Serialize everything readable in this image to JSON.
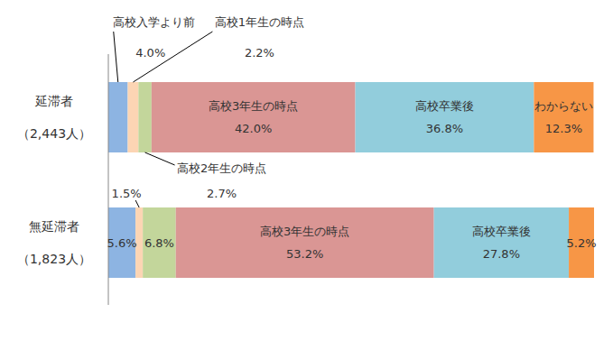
{
  "chart_data": {
    "type": "bar",
    "orientation": "horizontal",
    "stacked": true,
    "data_labels": true,
    "tick_labels": "y",
    "categories": [
      "延滞者\n（2,443人）",
      "無延滞者\n（1,823人）"
    ],
    "series": [
      {
        "name": "高校入学より前",
        "color": "#8db4e2",
        "values": [
          4.0,
          5.6
        ],
        "value_labels": [
          "4.0%",
          "5.6%"
        ]
      },
      {
        "name": "高校1年生の時点",
        "color": "#fcd5b4",
        "values": [
          2.2,
          1.5
        ],
        "value_labels": [
          "2.2%",
          "1.5%"
        ]
      },
      {
        "name": "高校2年生の時点",
        "color": "#c3d69b",
        "values": [
          2.7,
          6.8
        ],
        "value_labels": [
          "2.7%",
          "6.8%"
        ]
      },
      {
        "name": "高校3年生の時点",
        "color": "#da9694",
        "values": [
          42.0,
          53.2
        ],
        "value_labels": [
          "42.0%",
          "53.2%"
        ]
      },
      {
        "name": "高校卒業後",
        "color": "#92cddc",
        "values": [
          36.8,
          27.8
        ],
        "value_labels": [
          "36.8%",
          "27.8%"
        ]
      },
      {
        "name": "わからない",
        "color": "#f79646",
        "values": [
          12.3,
          5.2
        ],
        "value_labels": [
          "12.3%",
          "5.2%"
        ]
      }
    ]
  }
}
